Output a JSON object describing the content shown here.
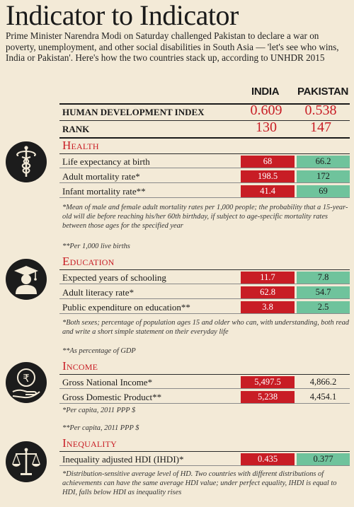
{
  "title": "Indicator to Indicator",
  "intro": "Prime Minister Narendra Modi on Saturday challenged Pakistan to declare a war on poverty, unemployment, and other social disabilities in South Asia — 'let's see who wins, India or Pakistan'. Here's how the two countries stack up, according to UNHDR 2015",
  "columns": {
    "india": "INDIA",
    "pakistan": "PAKISTAN"
  },
  "colors": {
    "india": "#c81d25",
    "pakistan": "#6fc39c",
    "background": "#f3ead7"
  },
  "hdi": {
    "label": "HUMAN DEVELOPMENT INDEX",
    "india": "0.609",
    "pakistan": "0.538"
  },
  "rank": {
    "label": "RANK",
    "india": "130",
    "pakistan": "147"
  },
  "sections": {
    "health": {
      "title": "Health",
      "icon": "caduceus-icon",
      "rows": [
        {
          "label": "Life expectancy at birth",
          "india": "68",
          "pakistan": "66.2"
        },
        {
          "label": "Adult mortality rate*",
          "india": "198.5",
          "pakistan": "172"
        },
        {
          "label": "Infant mortality rate**",
          "india": "41.4",
          "pakistan": "69"
        }
      ],
      "note1": "*Mean of male and female adult mortality rates per 1,000 people; the probability that a 15-year-old will die before reaching his/her 60th birthday, if subject to age-specific mortality rates between those ages for the specified year",
      "note2": "**Per 1,000 live births"
    },
    "education": {
      "title": "Education",
      "icon": "graduate-icon",
      "rows": [
        {
          "label": "Expected years of schooling",
          "india": "11.7",
          "pakistan": "7.8"
        },
        {
          "label": "Adult literacy rate*",
          "india": "62.8",
          "pakistan": "54.7"
        },
        {
          "label": "Public expenditure on education**",
          "india": "3.8",
          "pakistan": "2.5"
        }
      ],
      "note1": "*Both sexes; percentage of population ages 15 and older who can, with understanding, both read and write a short simple statement on their everyday life",
      "note2": "**As percentage of GDP"
    },
    "income": {
      "title": "Income",
      "icon": "rupee-coin-icon",
      "rows": [
        {
          "label": "Gross National Income*",
          "india": "5,497.5",
          "pakistan": "4,866.2"
        },
        {
          "label": "Gross Domestic Product**",
          "india": "5,238",
          "pakistan": "4,454.1"
        }
      ],
      "note1": "*Per capita, 2011 PPP $",
      "note2": "**Per capita, 2011 PPP $"
    },
    "inequality": {
      "title": "Inequality",
      "icon": "scales-icon",
      "rows": [
        {
          "label": "Inequality adjusted HDI (IHDI)*",
          "india": "0.435",
          "pakistan": "0.377"
        }
      ],
      "note1": "*Distribution-sensitive average level of HD. Two countries with different distributions of achievements can have the same average HDI value; under perfect equality, IHDI is equal to HDI, falls below HDI as inequality rises"
    }
  }
}
